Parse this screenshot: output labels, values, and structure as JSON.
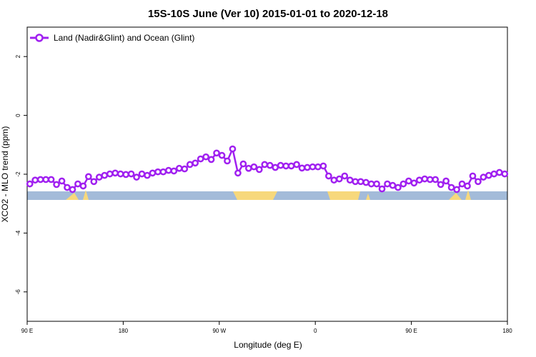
{
  "chart_data": {
    "type": "line",
    "title": "15S-10S June (Ver 10)   2015-01-01 to 2020-12-18",
    "xlabel": "Longitude (deg E)",
    "ylabel": "XCO2 - MLO trend (ppm)",
    "xlim": [
      90,
      540
    ],
    "ylim": [
      -7,
      3
    ],
    "xticks": [
      {
        "value": 90,
        "label": "90 E"
      },
      180,
      {
        "value": 270,
        "label": "90 W"
      },
      {
        "value": 360,
        "label": "0"
      },
      {
        "value": 450,
        "label": "90 E"
      },
      {
        "value": 540,
        "label": "180"
      }
    ],
    "yticks": [
      -6,
      -4,
      -2,
      0,
      2
    ],
    "legend": "top-left",
    "series": [
      {
        "name": "Land (Nadir&Glint) and Ocean (Glint)",
        "color": "#a020f0",
        "x": [
          92.5,
          97.5,
          102.5,
          107.5,
          112.5,
          117.5,
          122.5,
          127.5,
          132.5,
          137.5,
          142.5,
          147.5,
          152.5,
          157.5,
          162.5,
          167.5,
          172.5,
          177.5,
          182.5,
          187.5,
          192.5,
          197.5,
          202.5,
          207.5,
          212.5,
          217.5,
          222.5,
          227.5,
          232.5,
          237.5,
          242.5,
          247.5,
          252.5,
          257.5,
          262.5,
          267.5,
          272.5,
          277.5,
          282.5,
          287.5,
          292.5,
          297.5,
          302.5,
          307.5,
          312.5,
          317.5,
          322.5,
          327.5,
          332.5,
          337.5,
          342.5,
          347.5,
          352.5,
          357.5,
          362.5,
          367.5,
          372.5,
          377.5,
          382.5,
          387.5,
          392.5,
          397.5,
          402.5,
          407.5,
          412.5,
          417.5,
          422.5,
          427.5,
          432.5,
          437.5,
          442.5,
          447.5,
          452.5,
          457.5,
          462.5,
          467.5,
          472.5,
          477.5,
          482.5,
          487.5,
          492.5,
          497.5,
          502.5,
          507.5,
          512.5,
          517.5,
          522.5,
          527.5,
          532.5,
          537.5
        ],
        "values": [
          -2.33,
          -2.2,
          -2.18,
          -2.18,
          -2.18,
          -2.35,
          -2.23,
          -2.45,
          -2.52,
          -2.33,
          -2.4,
          -2.08,
          -2.25,
          -2.1,
          -2.04,
          -1.99,
          -1.96,
          -1.99,
          -2.01,
          -1.99,
          -2.1,
          -1.99,
          -2.04,
          -1.96,
          -1.92,
          -1.92,
          -1.87,
          -1.89,
          -1.8,
          -1.82,
          -1.67,
          -1.62,
          -1.48,
          -1.41,
          -1.5,
          -1.28,
          -1.36,
          -1.55,
          -1.14,
          -1.96,
          -1.65,
          -1.8,
          -1.75,
          -1.84,
          -1.67,
          -1.7,
          -1.77,
          -1.7,
          -1.72,
          -1.72,
          -1.67,
          -1.79,
          -1.77,
          -1.75,
          -1.75,
          -1.72,
          -2.06,
          -2.2,
          -2.16,
          -2.06,
          -2.2,
          -2.25,
          -2.25,
          -2.28,
          -2.33,
          -2.33,
          -2.5,
          -2.33,
          -2.38,
          -2.45,
          -2.33,
          -2.23,
          -2.3,
          -2.2,
          -2.16,
          -2.18,
          -2.18,
          -2.35,
          -2.23,
          -2.45,
          -2.52,
          -2.33,
          -2.4,
          -2.06,
          -2.25,
          -2.1,
          -2.04,
          -1.99,
          -1.94,
          -1.99
        ]
      }
    ]
  }
}
